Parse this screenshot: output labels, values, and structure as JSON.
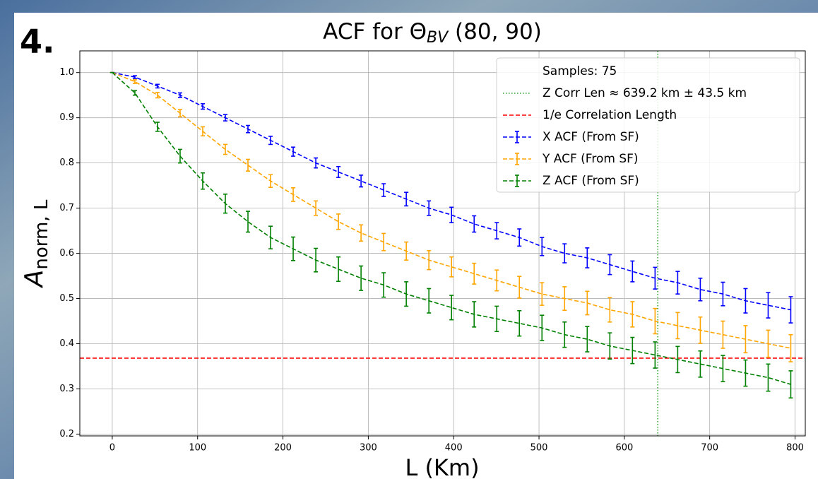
{
  "chart_data": {
    "type": "errorbar-line",
    "panel_label": "4.",
    "title": {
      "main": "ACF for Θ",
      "sub": "BV",
      "rest": " (80, 90)"
    },
    "xlabel": "L (Km)",
    "ylabel": {
      "main": "A",
      "sub": "norm, L"
    },
    "x": [
      0,
      26.5,
      53,
      79.5,
      106,
      132.5,
      159,
      185.5,
      212,
      238.5,
      265,
      291.5,
      318,
      344.5,
      371,
      397.5,
      424,
      450.5,
      477,
      503.5,
      530,
      556.5,
      583,
      609.5,
      636,
      662.5,
      689,
      715.5,
      742,
      768.5,
      795
    ],
    "series": [
      {
        "name": "X ACF (From SF)",
        "color": "#0000ff",
        "values": [
          1.0,
          0.99,
          0.97,
          0.95,
          0.925,
          0.9,
          0.875,
          0.85,
          0.825,
          0.8,
          0.78,
          0.76,
          0.74,
          0.72,
          0.7,
          0.685,
          0.665,
          0.65,
          0.635,
          0.615,
          0.6,
          0.59,
          0.575,
          0.56,
          0.545,
          0.535,
          0.52,
          0.51,
          0.495,
          0.485,
          0.475
        ],
        "errors": [
          0,
          0.003,
          0.004,
          0.005,
          0.006,
          0.007,
          0.008,
          0.009,
          0.01,
          0.011,
          0.012,
          0.013,
          0.014,
          0.015,
          0.016,
          0.017,
          0.018,
          0.018,
          0.019,
          0.02,
          0.021,
          0.022,
          0.022,
          0.023,
          0.024,
          0.025,
          0.025,
          0.026,
          0.027,
          0.028,
          0.029
        ]
      },
      {
        "name": "Y ACF (From SF)",
        "color": "#ffa500",
        "values": [
          1.0,
          0.98,
          0.95,
          0.91,
          0.87,
          0.83,
          0.795,
          0.76,
          0.73,
          0.7,
          0.67,
          0.645,
          0.625,
          0.605,
          0.585,
          0.57,
          0.555,
          0.54,
          0.525,
          0.51,
          0.5,
          0.49,
          0.475,
          0.465,
          0.45,
          0.44,
          0.43,
          0.42,
          0.41,
          0.4,
          0.39
        ],
        "errors": [
          0,
          0.004,
          0.006,
          0.008,
          0.01,
          0.011,
          0.013,
          0.014,
          0.015,
          0.016,
          0.017,
          0.018,
          0.019,
          0.02,
          0.021,
          0.022,
          0.023,
          0.023,
          0.024,
          0.025,
          0.026,
          0.026,
          0.027,
          0.028,
          0.028,
          0.029,
          0.029,
          0.03,
          0.03,
          0.03,
          0.03
        ]
      },
      {
        "name": "Z ACF (From SF)",
        "color": "#008000",
        "values": [
          1.0,
          0.955,
          0.88,
          0.815,
          0.76,
          0.71,
          0.67,
          0.635,
          0.61,
          0.585,
          0.565,
          0.545,
          0.53,
          0.51,
          0.495,
          0.48,
          0.465,
          0.455,
          0.445,
          0.435,
          0.42,
          0.41,
          0.395,
          0.385,
          0.375,
          0.365,
          0.355,
          0.345,
          0.335,
          0.325,
          0.31
        ],
        "errors": [
          0,
          0.005,
          0.01,
          0.015,
          0.018,
          0.021,
          0.023,
          0.025,
          0.026,
          0.026,
          0.027,
          0.027,
          0.027,
          0.027,
          0.027,
          0.027,
          0.028,
          0.028,
          0.028,
          0.028,
          0.028,
          0.028,
          0.029,
          0.029,
          0.029,
          0.029,
          0.029,
          0.029,
          0.029,
          0.03,
          0.03
        ]
      }
    ],
    "samples_label": "Samples: 75",
    "vline": {
      "x": 639.2,
      "label": "Z Corr Len ≈ 639.2 km ± 43.5 km",
      "color": "#2ca02c"
    },
    "hline": {
      "y": 0.368,
      "label": "1/e Correlation Length",
      "color": "#ff0000"
    },
    "xlim": [
      -38,
      812
    ],
    "ylim": [
      0.196,
      1.048
    ],
    "xticks": [
      0,
      100,
      200,
      300,
      400,
      500,
      600,
      700,
      800
    ],
    "yticks": [
      0.2,
      0.3,
      0.4,
      0.5,
      0.6,
      0.7,
      0.8,
      0.9,
      {
        "value": 1,
        "label": "1.0"
      }
    ],
    "grid": true,
    "legend": "upper right"
  }
}
